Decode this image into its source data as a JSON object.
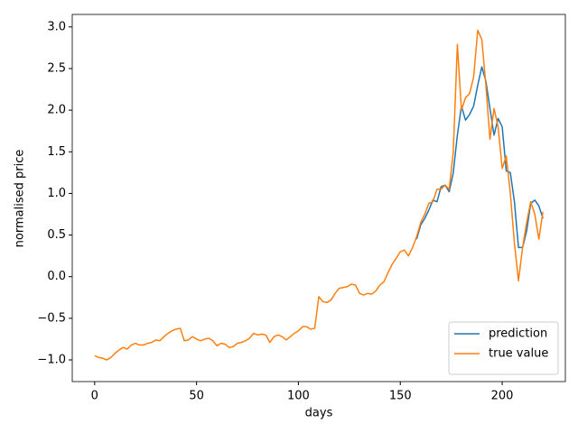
{
  "chart_data": {
    "type": "line",
    "xlabel": "days",
    "ylabel": "normalised price",
    "x": [
      0,
      2,
      4,
      6,
      8,
      10,
      12,
      14,
      16,
      18,
      20,
      22,
      24,
      26,
      28,
      30,
      32,
      34,
      36,
      38,
      40,
      42,
      44,
      46,
      48,
      50,
      52,
      54,
      56,
      58,
      60,
      62,
      64,
      66,
      68,
      70,
      72,
      74,
      76,
      78,
      80,
      82,
      84,
      86,
      88,
      90,
      92,
      94,
      96,
      98,
      100,
      102,
      104,
      106,
      108,
      110,
      112,
      114,
      116,
      118,
      120,
      122,
      124,
      126,
      128,
      130,
      132,
      134,
      136,
      138,
      140,
      142,
      144,
      146,
      148,
      150,
      152,
      154,
      156,
      158,
      160,
      162,
      164,
      166,
      168,
      170,
      172,
      174,
      176,
      178,
      180,
      182,
      184,
      186,
      188,
      190,
      192,
      194,
      196,
      198,
      200,
      202,
      204,
      206,
      208,
      210,
      212,
      214,
      216,
      218,
      220
    ],
    "series": [
      {
        "name": "prediction",
        "color": "#1f77b4",
        "values": [
          null,
          null,
          null,
          null,
          null,
          null,
          null,
          null,
          null,
          null,
          null,
          null,
          null,
          null,
          null,
          null,
          null,
          null,
          null,
          null,
          null,
          null,
          null,
          null,
          null,
          null,
          null,
          null,
          null,
          null,
          null,
          null,
          null,
          null,
          null,
          null,
          null,
          null,
          null,
          null,
          null,
          null,
          null,
          null,
          null,
          null,
          null,
          null,
          null,
          null,
          null,
          null,
          null,
          null,
          null,
          null,
          null,
          null,
          null,
          null,
          null,
          null,
          null,
          null,
          null,
          null,
          null,
          null,
          null,
          null,
          null,
          null,
          null,
          null,
          null,
          null,
          null,
          null,
          null,
          0.45,
          0.62,
          0.7,
          0.8,
          0.92,
          0.9,
          1.08,
          1.1,
          1.02,
          1.25,
          1.7,
          2.05,
          1.88,
          1.95,
          2.05,
          2.3,
          2.52,
          2.35,
          2.02,
          1.7,
          1.9,
          1.8,
          1.27,
          1.25,
          0.9,
          0.35,
          0.35,
          0.55,
          0.88,
          0.92,
          0.85,
          0.7
        ]
      },
      {
        "name": "true value",
        "color": "#ff7f0e",
        "values": [
          -0.95,
          -0.97,
          -0.98,
          -1.0,
          -0.97,
          -0.92,
          -0.88,
          -0.85,
          -0.87,
          -0.82,
          -0.8,
          -0.82,
          -0.82,
          -0.8,
          -0.79,
          -0.76,
          -0.77,
          -0.72,
          -0.68,
          -0.65,
          -0.63,
          -0.62,
          -0.77,
          -0.76,
          -0.72,
          -0.75,
          -0.77,
          -0.75,
          -0.74,
          -0.77,
          -0.83,
          -0.8,
          -0.81,
          -0.85,
          -0.84,
          -0.8,
          -0.79,
          -0.77,
          -0.74,
          -0.68,
          -0.7,
          -0.69,
          -0.7,
          -0.79,
          -0.72,
          -0.7,
          -0.72,
          -0.76,
          -0.72,
          -0.68,
          -0.65,
          -0.6,
          -0.6,
          -0.63,
          -0.62,
          -0.24,
          -0.3,
          -0.31,
          -0.28,
          -0.2,
          -0.14,
          -0.13,
          -0.12,
          -0.09,
          -0.1,
          -0.2,
          -0.22,
          -0.2,
          -0.21,
          -0.17,
          -0.1,
          -0.06,
          0.05,
          0.15,
          0.22,
          0.3,
          0.32,
          0.25,
          0.35,
          0.48,
          0.65,
          0.75,
          0.88,
          0.9,
          1.05,
          1.05,
          1.1,
          1.05,
          1.5,
          2.79,
          2.0,
          2.15,
          2.2,
          2.4,
          2.96,
          2.85,
          2.3,
          1.65,
          2.02,
          1.8,
          1.3,
          1.45,
          1.0,
          0.4,
          -0.05,
          0.35,
          0.65,
          0.9,
          0.75,
          0.45,
          0.78
        ]
      }
    ],
    "xlim": [
      -11,
      231
    ],
    "xticks": [
      0,
      50,
      100,
      150,
      200
    ],
    "ylim": [
      -1.26,
      3.15
    ],
    "yticks": [
      {
        "value": -1,
        "label": "−1.0"
      },
      {
        "value": -0.5,
        "label": "−0.5"
      },
      {
        "value": 0,
        "label": "0.0"
      },
      {
        "value": 0.5,
        "label": "0.5"
      },
      {
        "value": 1,
        "label": "1.0"
      },
      {
        "value": 1.5,
        "label": "1.5"
      },
      {
        "value": 2,
        "label": "2.0"
      },
      {
        "value": 2.5,
        "label": "2.5"
      },
      {
        "value": 3,
        "label": "3.0"
      }
    ],
    "legend": "lower right"
  }
}
